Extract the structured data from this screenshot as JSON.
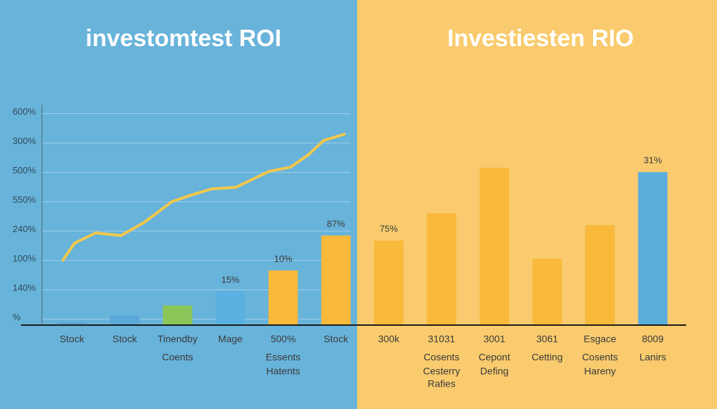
{
  "chart_data": {
    "type": "bar",
    "title": "investomtest ROI",
    "subtitle": "Investiesten RIO",
    "categories": [
      [
        "Stock"
      ],
      [
        "Stock"
      ],
      [
        "Tinendby",
        "Coents"
      ],
      [
        "Mage"
      ],
      [
        "500%",
        "Essents",
        "Hatents"
      ],
      [
        "Stock"
      ],
      [
        "300k"
      ],
      [
        "31031",
        "Cosents",
        "Cesterry",
        "Rafies"
      ],
      [
        "3001",
        "Cepont",
        "Defing"
      ],
      [
        "3061",
        "Cetting"
      ],
      [
        "Esgace",
        "Cosents",
        "Hareny"
      ],
      [
        "8009",
        "Lanirs"
      ]
    ],
    "values": [
      0.1,
      0.33,
      0.67,
      1.14,
      1.86,
      3.05,
      2.88,
      3.81,
      5.36,
      2.26,
      3.4,
      5.21
    ],
    "value_labels": [
      null,
      null,
      null,
      "15%",
      "10%",
      "87%",
      "75%",
      null,
      null,
      null,
      null,
      "31%"
    ],
    "colors": [
      "#5aa8d8",
      "#5aa8d8",
      "#8cc65a",
      "#5ab0e0",
      "#f9b93a",
      "#f9b93a",
      "#f9b93a",
      "#f9b93a",
      "#f9b93a",
      "#f9b93a",
      "#f9b93a",
      "#5aaedc"
    ],
    "line": {
      "color": "#f2c84b",
      "x": [
        -0.17,
        0.05,
        0.45,
        0.93,
        1.37,
        1.9,
        2.21,
        2.65,
        3.1,
        3.74,
        4.14,
        4.47,
        4.77,
        5.16
      ],
      "values": [
        2.21,
        2.79,
        3.14,
        3.05,
        3.5,
        4.21,
        4.4,
        4.64,
        4.69,
        5.24,
        5.38,
        5.79,
        6.29,
        6.5
      ]
    },
    "xlim": [
      -0.5,
      11.5
    ],
    "ylim": [
      0,
      7.5
    ],
    "yticks": [
      {
        "value": 0.25,
        "label": "%"
      },
      {
        "value": 1.25,
        "label": "140%"
      },
      {
        "value": 2.25,
        "label": "100%"
      },
      {
        "value": 3.25,
        "label": "240%"
      },
      {
        "value": 4.25,
        "label": "550%"
      },
      {
        "value": 5.25,
        "label": "500%"
      },
      {
        "value": 6.25,
        "label": "300%"
      },
      {
        "value": 7.25,
        "label": "600%"
      }
    ],
    "grid": true
  }
}
